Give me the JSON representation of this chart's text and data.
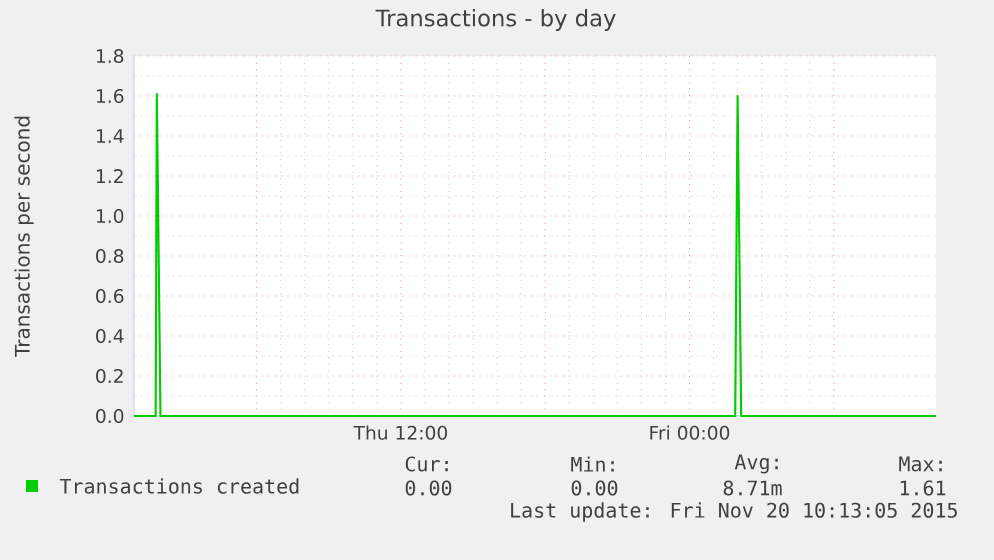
{
  "chart_data": {
    "type": "line",
    "title": "Transactions - by day",
    "ylabel": "Transactions per second",
    "x": [
      "2015-11-19T00:54",
      "2015-11-19T01:45",
      "2015-11-19T01:48",
      "2015-11-19T01:51",
      "2015-11-19T02:00",
      "2015-11-20T01:54",
      "2015-11-20T02:00",
      "2015-11-20T02:09",
      "2015-11-20T10:15"
    ],
    "series": [
      {
        "name": "Transactions created",
        "color": "#00cc00",
        "values": [
          0,
          0,
          0,
          1.61,
          0,
          0,
          1.6,
          0,
          0
        ]
      }
    ],
    "xlim": [
      "2015-11-19T00:54",
      "2015-11-20T10:15"
    ],
    "xticks": [
      {
        "value": "2015-11-19T06:00",
        "label": null
      },
      {
        "value": "2015-11-19T12:00",
        "label": "Thu 12:00"
      },
      {
        "value": "2015-11-19T18:00",
        "label": null
      },
      {
        "value": "2015-11-20T00:00",
        "label": "Fri 00:00"
      },
      {
        "value": "2015-11-20T06:00",
        "label": null
      }
    ],
    "ylim": [
      0,
      1.8
    ],
    "yticks": [
      {
        "value": 0,
        "label": "0.0"
      },
      {
        "value": 0.2,
        "label": "0.2"
      },
      {
        "value": 0.4,
        "label": "0.4"
      },
      {
        "value": 0.6,
        "label": "0.6"
      },
      {
        "value": 0.8,
        "label": "0.8"
      },
      {
        "value": 1.0,
        "label": "1.0"
      },
      {
        "value": 1.2,
        "label": "1.2"
      },
      {
        "value": 1.4,
        "label": "1.4"
      },
      {
        "value": 1.6,
        "label": "1.6"
      },
      {
        "value": 1.8,
        "label": "1.8"
      }
    ],
    "grid": true,
    "legend": "bottom",
    "annotations": [
      "Cur:",
      "Min:",
      "Avg:",
      "Max:",
      "0.00",
      "0.00",
      "8.71m",
      "1.61",
      "Last update: Fri Nov 20 10:13:05 2015"
    ]
  }
}
